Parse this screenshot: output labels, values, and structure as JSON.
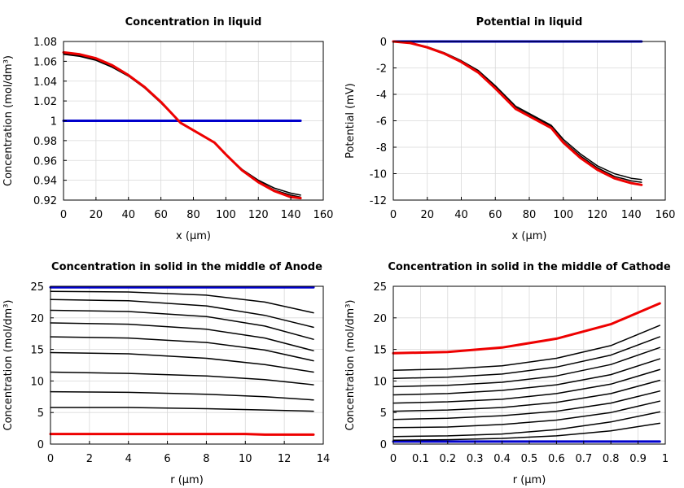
{
  "chart_data": [
    {
      "type": "line",
      "title": "Concentration in liquid",
      "xlabel": "x (µm)",
      "ylabel": "Concentration (mol/dm³)",
      "xlim": [
        0,
        160
      ],
      "ylim": [
        0.92,
        1.08
      ],
      "xticks": [
        0,
        20,
        40,
        60,
        80,
        100,
        120,
        140,
        160
      ],
      "yticks": [
        0.92,
        0.94,
        0.96,
        0.98,
        1,
        1.02,
        1.04,
        1.06,
        1.08
      ],
      "grid": true,
      "series": [
        {
          "color": "#0000cc",
          "width": 3,
          "x": [
            0,
            146
          ],
          "y": [
            1.0,
            1.0
          ]
        },
        {
          "color": "#000000",
          "width": 1.5,
          "x": [
            0,
            10,
            20,
            30,
            40,
            50,
            60,
            72,
            93,
            100,
            110,
            120,
            130,
            140,
            146
          ],
          "y": [
            1.067,
            1.065,
            1.061,
            1.054,
            1.045,
            1.033,
            1.018,
            0.998,
            0.978,
            0.966,
            0.951,
            0.94,
            0.932,
            0.927,
            0.925
          ]
        },
        {
          "color": "#000000",
          "width": 1.5,
          "x": [
            0,
            10,
            20,
            30,
            40,
            50,
            60,
            72,
            93,
            100,
            110,
            120,
            130,
            140,
            146
          ],
          "y": [
            1.068,
            1.066,
            1.062,
            1.055,
            1.046,
            1.034,
            1.019,
            0.998,
            0.978,
            0.966,
            0.95,
            0.939,
            0.93,
            0.925,
            0.923
          ]
        },
        {
          "color": "#ee0000",
          "width": 3,
          "x": [
            0,
            10,
            20,
            30,
            40,
            50,
            60,
            72,
            93,
            100,
            110,
            120,
            130,
            140,
            146
          ],
          "y": [
            1.069,
            1.067,
            1.063,
            1.056,
            1.046,
            1.034,
            1.019,
            0.998,
            0.978,
            0.966,
            0.95,
            0.938,
            0.929,
            0.923,
            0.922
          ]
        }
      ]
    },
    {
      "type": "line",
      "title": "Potential in liquid",
      "xlabel": "x (µm)",
      "ylabel": "Potential (mV)",
      "xlim": [
        0,
        160
      ],
      "ylim": [
        -12,
        0
      ],
      "xticks": [
        0,
        20,
        40,
        60,
        80,
        100,
        120,
        140,
        160
      ],
      "yticks": [
        -12,
        -10,
        -8,
        -6,
        -4,
        -2,
        0
      ],
      "grid": true,
      "series": [
        {
          "color": "#0000cc",
          "width": 3,
          "x": [
            0,
            146
          ],
          "y": [
            0,
            0
          ]
        },
        {
          "color": "#000000",
          "width": 1.5,
          "x": [
            0,
            10,
            20,
            30,
            40,
            50,
            60,
            72,
            93,
            100,
            110,
            120,
            130,
            140,
            146
          ],
          "y": [
            0,
            -0.1,
            -0.4,
            -0.85,
            -1.45,
            -2.2,
            -3.35,
            -4.9,
            -6.35,
            -7.4,
            -8.5,
            -9.4,
            -10.0,
            -10.35,
            -10.45
          ]
        },
        {
          "color": "#000000",
          "width": 1.5,
          "x": [
            0,
            10,
            20,
            30,
            40,
            50,
            60,
            72,
            93,
            100,
            110,
            120,
            130,
            140,
            146
          ],
          "y": [
            0,
            -0.11,
            -0.42,
            -0.88,
            -1.5,
            -2.28,
            -3.45,
            -5.0,
            -6.45,
            -7.55,
            -8.65,
            -9.55,
            -10.2,
            -10.55,
            -10.65
          ]
        },
        {
          "color": "#ee0000",
          "width": 3,
          "x": [
            0,
            10,
            20,
            30,
            40,
            50,
            60,
            72,
            93,
            100,
            110,
            120,
            130,
            140,
            146
          ],
          "y": [
            0,
            -0.12,
            -0.45,
            -0.92,
            -1.55,
            -2.35,
            -3.55,
            -5.1,
            -6.55,
            -7.65,
            -8.8,
            -9.7,
            -10.35,
            -10.72,
            -10.85
          ]
        }
      ]
    },
    {
      "type": "line",
      "title": "Concentration in solid in the middle of Anode",
      "xlabel": "r (µm)",
      "ylabel": "Concentration (mol/dm³)",
      "xlim": [
        0,
        14
      ],
      "ylim": [
        0,
        25
      ],
      "xticks": [
        0,
        2,
        4,
        6,
        8,
        10,
        12,
        14
      ],
      "yticks": [
        0,
        5,
        10,
        15,
        20,
        25
      ],
      "grid": true,
      "series": [
        {
          "color": "#0000cc",
          "width": 3,
          "x": [
            0,
            13.5
          ],
          "y": [
            24.85,
            24.85
          ]
        },
        {
          "color": "#000000",
          "width": 1.5,
          "x": [
            0,
            4,
            8,
            11,
            13.5
          ],
          "y": [
            24.2,
            24.1,
            23.6,
            22.5,
            20.8
          ]
        },
        {
          "color": "#000000",
          "width": 1.5,
          "x": [
            0,
            4,
            8,
            11,
            13.5
          ],
          "y": [
            22.9,
            22.7,
            21.9,
            20.4,
            18.5
          ]
        },
        {
          "color": "#000000",
          "width": 1.5,
          "x": [
            0,
            4,
            8,
            11,
            13.5
          ],
          "y": [
            21.2,
            21.0,
            20.2,
            18.7,
            16.6
          ]
        },
        {
          "color": "#000000",
          "width": 1.5,
          "x": [
            0,
            4,
            8,
            11,
            13.5
          ],
          "y": [
            19.2,
            19.0,
            18.2,
            16.8,
            14.8
          ]
        },
        {
          "color": "#000000",
          "width": 1.5,
          "x": [
            0,
            4,
            8,
            11,
            13.5
          ],
          "y": [
            17.0,
            16.8,
            16.1,
            14.9,
            13.2
          ]
        },
        {
          "color": "#000000",
          "width": 1.5,
          "x": [
            0,
            4,
            8,
            11,
            13.5
          ],
          "y": [
            14.5,
            14.3,
            13.6,
            12.6,
            11.4
          ]
        },
        {
          "color": "#000000",
          "width": 1.5,
          "x": [
            0,
            4,
            8,
            11,
            13.5
          ],
          "y": [
            11.4,
            11.2,
            10.8,
            10.2,
            9.4
          ]
        },
        {
          "color": "#000000",
          "width": 1.5,
          "x": [
            0,
            4,
            8,
            11,
            13.5
          ],
          "y": [
            8.3,
            8.2,
            7.9,
            7.5,
            7.0
          ]
        },
        {
          "color": "#000000",
          "width": 1.5,
          "x": [
            0,
            4,
            8,
            11,
            13.5
          ],
          "y": [
            5.8,
            5.8,
            5.6,
            5.4,
            5.2
          ]
        },
        {
          "color": "#ee0000",
          "width": 3,
          "x": [
            0,
            4,
            8,
            10,
            11,
            12,
            13.5
          ],
          "y": [
            1.6,
            1.6,
            1.6,
            1.6,
            1.5,
            1.5,
            1.5
          ]
        }
      ]
    },
    {
      "type": "line",
      "title": "Concentration in solid in the middle of Cathode",
      "xlabel": "r (µm)",
      "ylabel": "Concentration (mol/dm³)",
      "xlim": [
        0,
        1
      ],
      "ylim": [
        0,
        25
      ],
      "xticks": [
        0,
        0.1,
        0.2,
        0.3,
        0.4,
        0.5,
        0.6,
        0.7,
        0.8,
        0.9,
        1
      ],
      "yticks": [
        0,
        5,
        10,
        15,
        20,
        25
      ],
      "grid": true,
      "series": [
        {
          "color": "#0000cc",
          "width": 3,
          "x": [
            0,
            0.98
          ],
          "y": [
            0.4,
            0.4
          ]
        },
        {
          "color": "#000000",
          "width": 1.5,
          "x": [
            0,
            0.2,
            0.4,
            0.6,
            0.8,
            0.98
          ],
          "y": [
            0.6,
            0.7,
            0.9,
            1.3,
            2.1,
            3.3
          ]
        },
        {
          "color": "#000000",
          "width": 1.5,
          "x": [
            0,
            0.2,
            0.4,
            0.6,
            0.8,
            0.98
          ],
          "y": [
            1.2,
            1.3,
            1.6,
            2.3,
            3.5,
            5.1
          ]
        },
        {
          "color": "#000000",
          "width": 1.5,
          "x": [
            0,
            0.2,
            0.4,
            0.6,
            0.8,
            0.98
          ],
          "y": [
            2.6,
            2.7,
            3.1,
            3.8,
            5.0,
            6.8
          ]
        },
        {
          "color": "#000000",
          "width": 1.5,
          "x": [
            0,
            0.2,
            0.4,
            0.6,
            0.8,
            0.98
          ],
          "y": [
            3.9,
            4.1,
            4.5,
            5.2,
            6.5,
            8.4
          ]
        },
        {
          "color": "#000000",
          "width": 1.5,
          "x": [
            0,
            0.2,
            0.4,
            0.6,
            0.8,
            0.98
          ],
          "y": [
            5.2,
            5.4,
            5.8,
            6.6,
            8.0,
            10.1
          ]
        },
        {
          "color": "#000000",
          "width": 1.5,
          "x": [
            0,
            0.2,
            0.4,
            0.6,
            0.8,
            0.98
          ],
          "y": [
            6.5,
            6.7,
            7.1,
            8.0,
            9.5,
            11.8
          ]
        },
        {
          "color": "#000000",
          "width": 1.5,
          "x": [
            0,
            0.2,
            0.4,
            0.6,
            0.8,
            0.98
          ],
          "y": [
            7.8,
            8.0,
            8.5,
            9.4,
            11.0,
            13.5
          ]
        },
        {
          "color": "#000000",
          "width": 1.5,
          "x": [
            0,
            0.2,
            0.4,
            0.6,
            0.8,
            0.98
          ],
          "y": [
            9.1,
            9.3,
            9.8,
            10.8,
            12.6,
            15.3
          ]
        },
        {
          "color": "#000000",
          "width": 1.5,
          "x": [
            0,
            0.2,
            0.4,
            0.6,
            0.8,
            0.98
          ],
          "y": [
            10.4,
            10.6,
            11.1,
            12.2,
            14.1,
            17.0
          ]
        },
        {
          "color": "#000000",
          "width": 1.5,
          "x": [
            0,
            0.2,
            0.4,
            0.6,
            0.8,
            0.98
          ],
          "y": [
            11.7,
            11.9,
            12.4,
            13.6,
            15.6,
            18.8
          ]
        },
        {
          "color": "#ee0000",
          "width": 3,
          "x": [
            0,
            0.2,
            0.4,
            0.6,
            0.8,
            0.98
          ],
          "y": [
            14.4,
            14.6,
            15.3,
            16.7,
            19.0,
            22.3
          ]
        }
      ]
    }
  ]
}
